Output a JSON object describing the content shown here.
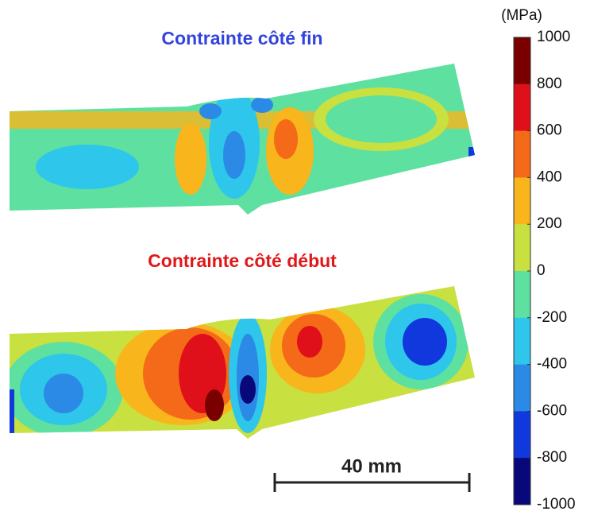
{
  "maps": [
    {
      "title": "Contrainte côté fin",
      "color": "#3344dd"
    },
    {
      "title": "Contrainte côté début",
      "color": "#e01818"
    }
  ],
  "colorbar": {
    "unit": "(MPa)",
    "ticks": [
      1000,
      800,
      600,
      400,
      200,
      0,
      -200,
      -400,
      -600,
      -800,
      -1000
    ],
    "colors": [
      "#7a0000",
      "#e0101a",
      "#f46a18",
      "#f8b51c",
      "#c8e040",
      "#5ee0a0",
      "#2ec6ea",
      "#2b8ae6",
      "#1038dc",
      "#08087a"
    ]
  },
  "scale_bar": {
    "label": "40 mm"
  }
}
